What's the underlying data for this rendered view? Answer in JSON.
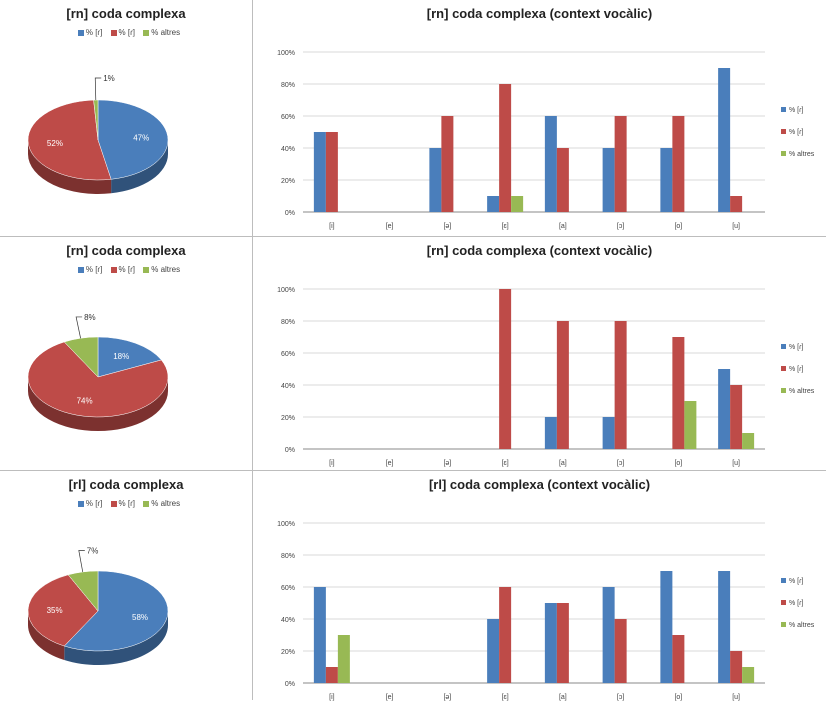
{
  "colors": {
    "r": "#4a7ebb",
    "d": "#be4b48",
    "altres": "#98b954",
    "grid": "#d9d9d9",
    "axis": "#888888"
  },
  "legend_labels": [
    "% [ɾ]",
    "% [ɾ]",
    "% altres"
  ],
  "chart_data": [
    {
      "type": "pie",
      "title": "[rn] coda complexa",
      "legend": [
        "% [ɾ]",
        "% [ɾ]",
        "% altres"
      ],
      "values": [
        47,
        52,
        1
      ],
      "labels": [
        "47%",
        "52%",
        "1%"
      ]
    },
    {
      "type": "bar",
      "title": "[rn] coda complexa (context vocàlic)",
      "categories": [
        "[i]",
        "[e]",
        "[ə]",
        "[ɛ]",
        "[a]",
        "[ɔ]",
        "[o]",
        "[u]"
      ],
      "series": [
        {
          "name": "% [ɾ]",
          "values": [
            50,
            0,
            40,
            10,
            60,
            40,
            40,
            90
          ]
        },
        {
          "name": "% [ɾ]",
          "values": [
            50,
            0,
            60,
            80,
            40,
            60,
            60,
            10
          ]
        },
        {
          "name": "% altres",
          "values": [
            0,
            0,
            0,
            10,
            0,
            0,
            0,
            0
          ]
        }
      ],
      "yticks": [
        "0%",
        "20%",
        "40%",
        "60%",
        "80%",
        "100%"
      ],
      "ylim": [
        0,
        100
      ]
    },
    {
      "type": "pie",
      "title": "[rn] coda complexa",
      "legend": [
        "% [ɾ]",
        "% [ɾ]",
        "% altres"
      ],
      "values": [
        18,
        74,
        8
      ],
      "labels": [
        "18%",
        "74%",
        "8%"
      ]
    },
    {
      "type": "bar",
      "title": "[rn] coda complexa (context vocàlic)",
      "categories": [
        "[i]",
        "[e]",
        "[ə]",
        "[ɛ]",
        "[a]",
        "[ɔ]",
        "[o]",
        "[u]"
      ],
      "series": [
        {
          "name": "% [ɾ]",
          "values": [
            0,
            0,
            0,
            0,
            20,
            20,
            0,
            50
          ]
        },
        {
          "name": "% [ɾ]",
          "values": [
            0,
            0,
            0,
            100,
            80,
            80,
            70,
            40
          ]
        },
        {
          "name": "% altres",
          "values": [
            0,
            0,
            0,
            0,
            0,
            0,
            30,
            10
          ]
        }
      ],
      "yticks": [
        "0%",
        "20%",
        "40%",
        "60%",
        "80%",
        "100%"
      ],
      "ylim": [
        0,
        100
      ]
    },
    {
      "type": "pie",
      "title": "[rl] coda complexa",
      "legend": [
        "% [ɾ]",
        "% [ɾ]",
        "% altres"
      ],
      "values": [
        58,
        35,
        7
      ],
      "labels": [
        "58%",
        "35%",
        "7%"
      ]
    },
    {
      "type": "bar",
      "title": "[rl] coda complexa (context vocàlic)",
      "categories": [
        "[i]",
        "[e]",
        "[ə]",
        "[ɛ]",
        "[a]",
        "[ɔ]",
        "[o]",
        "[u]"
      ],
      "series": [
        {
          "name": "% [ɾ]",
          "values": [
            60,
            0,
            0,
            40,
            50,
            60,
            70,
            70
          ]
        },
        {
          "name": "% [ɾ]",
          "values": [
            10,
            0,
            0,
            60,
            50,
            40,
            30,
            20
          ]
        },
        {
          "name": "% altres",
          "values": [
            30,
            0,
            0,
            0,
            0,
            0,
            0,
            10
          ]
        }
      ],
      "yticks": [
        "0%",
        "20%",
        "40%",
        "60%",
        "80%",
        "100%"
      ],
      "ylim": [
        0,
        100
      ]
    }
  ]
}
